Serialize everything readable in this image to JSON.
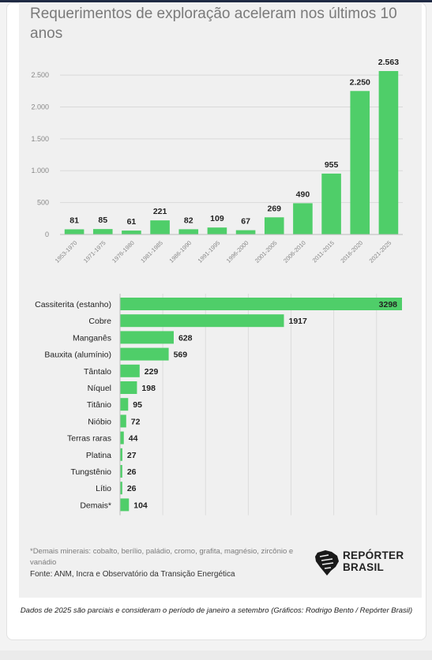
{
  "title": "Requerimentos de exploração aceleram nos últimos 10 anos",
  "chart_data": [
    {
      "type": "bar",
      "orientation": "vertical",
      "categories": [
        "1953-1970",
        "1971-1975",
        "1976-1980",
        "1981-1985",
        "1986-1990",
        "1991-1995",
        "1996-2000",
        "2001-2005",
        "2006-2010",
        "2011-2015",
        "2016-2020",
        "2021-2025"
      ],
      "values": [
        81,
        85,
        61,
        221,
        82,
        109,
        67,
        269,
        490,
        955,
        2250,
        2563
      ],
      "value_labels": [
        "81",
        "85",
        "61",
        "221",
        "82",
        "109",
        "67",
        "269",
        "490",
        "955",
        "2.250",
        "2.563"
      ],
      "yticks": [
        0,
        500,
        1000,
        1500,
        2000,
        2500
      ],
      "ytick_labels": [
        "0",
        "500",
        "1.000",
        "1.500",
        "2.000",
        "2.500"
      ],
      "ylim": [
        0,
        2563
      ],
      "grid": true,
      "bar_color": "#4fce69"
    },
    {
      "type": "bar",
      "orientation": "horizontal",
      "categories": [
        "Cassiterita (estanho)",
        "Cobre",
        "Manganês",
        "Bauxita (alumínio)",
        "Tântalo",
        "Níquel",
        "Titânio",
        "Nióbio",
        "Terras raras",
        "Platina",
        "Tungstênio",
        "Lítio",
        "Demais*"
      ],
      "values": [
        3298,
        1917,
        628,
        569,
        229,
        198,
        95,
        72,
        44,
        27,
        26,
        26,
        104
      ],
      "value_labels": [
        "3298",
        "1917",
        "628",
        "569",
        "229",
        "198",
        "95",
        "72",
        "44",
        "27",
        "26",
        "26",
        "104"
      ],
      "xlim": [
        0,
        3298
      ],
      "grid": true,
      "bar_color": "#4fce69"
    }
  ],
  "footnote": "*Demais minerais: cobalto, berílio, paládio, cromo, grafita, magnésio, zircônio e vanádio",
  "source": "Fonte: ANM, Incra e Observatório da Transição Energética",
  "logo": {
    "line1": "REPÓRTER",
    "line2": "BRASIL"
  },
  "caption": "Dados de 2025 são parciais e consideram o período de janeiro a setembro (Gráficos: Rodrigo Bento / Repórter Brasil)"
}
